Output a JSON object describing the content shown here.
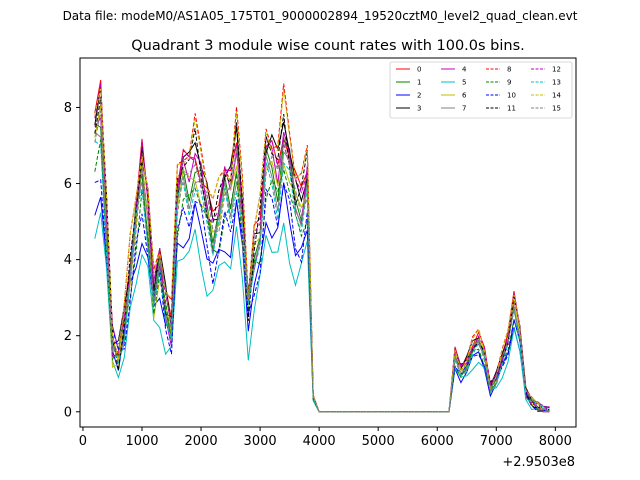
{
  "figure": {
    "suptitle": "Data file: modeM0/AS1A05_175T01_9000002894_19520cztM0_level2_quad_clean.evt"
  },
  "chart_data": {
    "type": "line",
    "title": "Quadrant 3 module wise count rates with 100.0s bins.",
    "xlabel": "",
    "ylabel": "",
    "x_offset_label": "+2.9503e8",
    "xlim": [
      -50,
      8350
    ],
    "ylim": [
      -0.4,
      9.3
    ],
    "x_ticks": [
      0,
      1000,
      2000,
      3000,
      4000,
      5000,
      6000,
      7000,
      8000
    ],
    "y_ticks": [
      0,
      2,
      4,
      6,
      8
    ],
    "grid": false,
    "legend_position": "top-right",
    "legend_columns": 4,
    "x": [
      200,
      300,
      400,
      500,
      600,
      700,
      800,
      900,
      1000,
      1100,
      1200,
      1300,
      1400,
      1500,
      1600,
      1700,
      1800,
      1900,
      2000,
      2100,
      2200,
      2300,
      2400,
      2500,
      2600,
      2700,
      2800,
      2900,
      3000,
      3100,
      3200,
      3300,
      3400,
      3500,
      3600,
      3700,
      3800,
      3900,
      4000,
      6200,
      6300,
      6400,
      6500,
      6600,
      6700,
      6800,
      6900,
      7000,
      7100,
      7200,
      7300,
      7400,
      7500,
      7600,
      7700,
      7800,
      7900
    ],
    "base_profile": [
      7.5,
      8.1,
      5.0,
      1.8,
      1.4,
      2.3,
      3.8,
      5.3,
      6.6,
      5.3,
      3.2,
      4.0,
      2.8,
      2.2,
      5.9,
      6.5,
      6.3,
      6.9,
      6.3,
      5.5,
      4.8,
      5.4,
      6.2,
      5.9,
      7.1,
      5.4,
      2.8,
      4.3,
      4.9,
      7.0,
      6.8,
      6.3,
      7.5,
      6.7,
      5.7,
      5.5,
      6.4,
      0.4,
      0.0,
      0.0,
      1.5,
      1.1,
      1.3,
      1.7,
      1.9,
      1.5,
      0.65,
      0.9,
      1.4,
      1.9,
      2.9,
      2.1,
      0.5,
      0.25,
      0.15,
      0.05,
      0.02
    ],
    "series": [
      {
        "name": "0",
        "color": "#ff0000",
        "dash": false,
        "scale": 1.0,
        "shift": 0.3,
        "gain": 1.06
      },
      {
        "name": "1",
        "color": "#008000",
        "dash": false,
        "scale": 0.96,
        "shift": -0.05,
        "gain": 0.95
      },
      {
        "name": "2",
        "color": "#0000ff",
        "dash": false,
        "scale": 0.7,
        "shift": 0.6,
        "gain": 0.8
      },
      {
        "name": "3",
        "color": "#000000",
        "dash": false,
        "scale": 1.02,
        "shift": 0.15,
        "gain": 1.05
      },
      {
        "name": "4",
        "color": "#bf00bf",
        "dash": false,
        "scale": 0.97,
        "shift": 0.1,
        "gain": 1.0
      },
      {
        "name": "5",
        "color": "#00bfbf",
        "dash": false,
        "scale": 0.62,
        "shift": 0.3,
        "gain": 0.72
      },
      {
        "name": "6",
        "color": "#bfbf00",
        "dash": false,
        "scale": 0.94,
        "shift": -0.1,
        "gain": 0.98
      },
      {
        "name": "7",
        "color": "#808080",
        "dash": false,
        "scale": 0.92,
        "shift": 0.0,
        "gain": 0.93
      },
      {
        "name": "8",
        "color": "#ff0000",
        "dash": true,
        "scale": 1.08,
        "shift": 0.2,
        "gain": 1.1
      },
      {
        "name": "9",
        "color": "#008000",
        "dash": true,
        "scale": 0.86,
        "shift": 0.05,
        "gain": 0.88
      },
      {
        "name": "10",
        "color": "#0000ff",
        "dash": true,
        "scale": 0.74,
        "shift": 0.7,
        "gain": 0.85
      },
      {
        "name": "11",
        "color": "#000000",
        "dash": true,
        "scale": 1.0,
        "shift": 0.25,
        "gain": 1.02
      },
      {
        "name": "12",
        "color": "#bf00bf",
        "dash": true,
        "scale": 0.99,
        "shift": 0.2,
        "gain": 1.04
      },
      {
        "name": "13",
        "color": "#00bfbf",
        "dash": true,
        "scale": 0.88,
        "shift": 0.1,
        "gain": 0.9
      },
      {
        "name": "14",
        "color": "#bfbf00",
        "dash": true,
        "scale": 1.06,
        "shift": 0.3,
        "gain": 1.08
      },
      {
        "name": "15",
        "color": "#808080",
        "dash": true,
        "scale": 0.95,
        "shift": 0.15,
        "gain": 0.97
      }
    ]
  }
}
